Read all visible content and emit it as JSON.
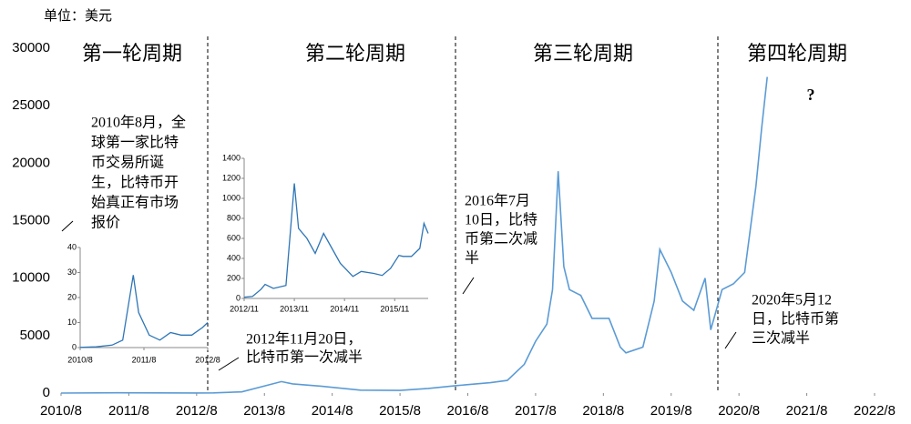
{
  "unit_label": "单位：美元",
  "cycle_labels": [
    "第一轮周期",
    "第二轮周期",
    "第三轮周期",
    "第四轮周期"
  ],
  "question_mark": "?",
  "notes": [
    {
      "lines": [
        "2010年8月，全",
        "球第一家比特",
        "币交易所诞",
        "生，比特币开",
        "始真正有市场",
        "报价"
      ]
    },
    {
      "lines": [
        "2012年11月20日，",
        "比特币第一次减半"
      ]
    },
    {
      "lines": [
        "2016年7月",
        "10日，比特",
        "币第二次减",
        "半"
      ]
    },
    {
      "lines": [
        "2020年5月12",
        "日，比特币第",
        "三次减半"
      ]
    }
  ],
  "chart_data": [
    {
      "type": "line",
      "color": "#5b9bd5",
      "x": [
        "2010/8",
        "2011/6",
        "2012/8",
        "2012/11",
        "2013/4",
        "2013/11",
        "2014/1",
        "2014/6",
        "2015/1",
        "2015/8",
        "2016/1",
        "2016/6",
        "2016/12",
        "2017/3",
        "2017/6",
        "2017/8",
        "2017/10",
        "2017/11",
        "2017/12",
        "2018/1",
        "2018/2",
        "2018/4",
        "2018/6",
        "2018/9",
        "2018/11",
        "2018/12",
        "2019/3",
        "2019/5",
        "2019/6",
        "2019/8",
        "2019/10",
        "2019/12",
        "2020/2",
        "2020/3",
        "2020/5",
        "2020/7",
        "2020/9",
        "2020/11",
        "2020/12",
        "2021/1"
      ],
      "values": [
        0.07,
        20,
        10,
        12,
        100,
        1000,
        800,
        600,
        250,
        230,
        400,
        650,
        900,
        1100,
        2500,
        4500,
        6000,
        9000,
        19300,
        11000,
        9000,
        8500,
        6500,
        6500,
        4000,
        3500,
        4000,
        8000,
        12500,
        10500,
        8000,
        7200,
        10000,
        5500,
        9000,
        9500,
        10500,
        18000,
        23000,
        27500
      ],
      "xlim": [
        "2010/8",
        "2022/8"
      ],
      "xticks": [
        "2010/8",
        "2011/8",
        "2012/8",
        "2013/8",
        "2014/8",
        "2015/8",
        "2016/8",
        "2017/8",
        "2018/8",
        "2019/8",
        "2020/8",
        "2021/8",
        "2022/8"
      ],
      "ylim": [
        0,
        30000
      ],
      "yticks": [
        0,
        5000,
        10000,
        15000,
        20000,
        25000,
        30000
      ]
    },
    {
      "type": "line",
      "color": "#2e75b6",
      "x": [
        "2010/8",
        "2010/11",
        "2011/2",
        "2011/4",
        "2011/6",
        "2011/7",
        "2011/9",
        "2011/11",
        "2012/1",
        "2012/3",
        "2012/5",
        "2012/7",
        "2012/8"
      ],
      "values": [
        0.07,
        0.3,
        1,
        3,
        29,
        14,
        5,
        3,
        6,
        5,
        5,
        8,
        10
      ],
      "xlim": [
        "2010/8",
        "2012/8"
      ],
      "xticks": [
        "2010/8",
        "2011/8",
        "2012/8"
      ],
      "ylim": [
        0,
        40
      ],
      "yticks": [
        0,
        10,
        20,
        30,
        40
      ]
    },
    {
      "type": "line",
      "color": "#2e75b6",
      "x": [
        "2012/11",
        "2013/1",
        "2013/3",
        "2013/4",
        "2013/6",
        "2013/9",
        "2013/11",
        "2013/12",
        "2014/2",
        "2014/4",
        "2014/6",
        "2014/8",
        "2014/10",
        "2015/1",
        "2015/3",
        "2015/6",
        "2015/8",
        "2015/10",
        "2015/12",
        "2016/1",
        "2016/3",
        "2016/5",
        "2016/6",
        "2016/7"
      ],
      "values": [
        12,
        20,
        90,
        140,
        100,
        130,
        1150,
        700,
        600,
        450,
        650,
        500,
        350,
        220,
        270,
        250,
        230,
        300,
        430,
        420,
        420,
        500,
        750,
        650
      ],
      "xlim": [
        "2012/11",
        "2016/7"
      ],
      "xticks": [
        "2012/11",
        "2013/11",
        "2014/11",
        "2015/11"
      ],
      "ylim": [
        0,
        1400
      ],
      "yticks": [
        0,
        200,
        400,
        600,
        800,
        1000,
        1200,
        1400
      ]
    }
  ]
}
